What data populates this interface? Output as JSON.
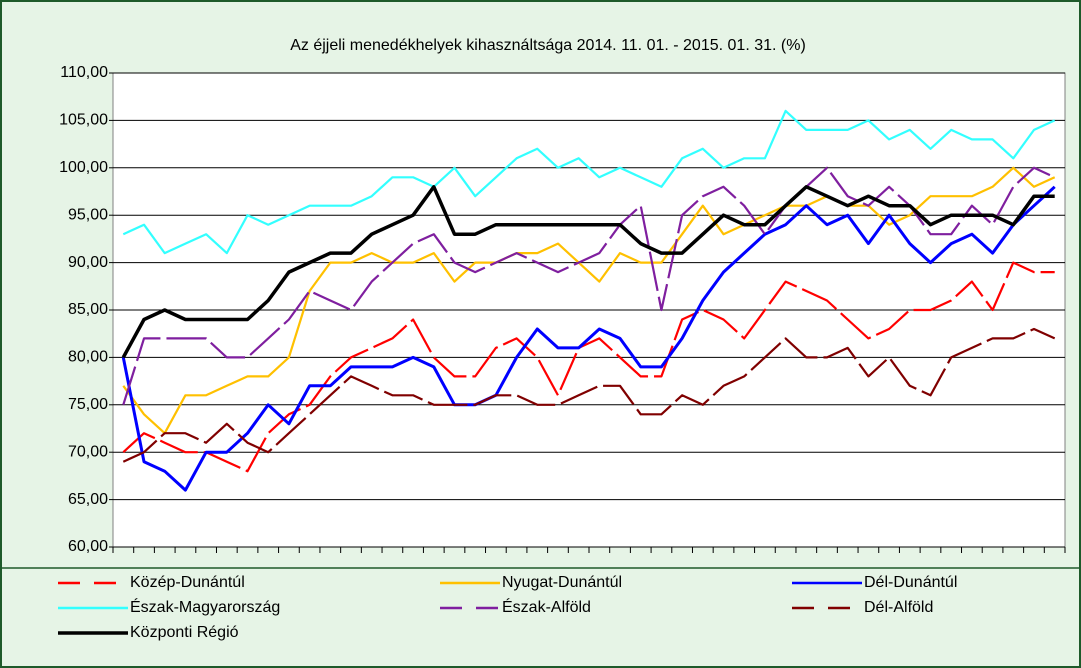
{
  "chart_data": {
    "type": "line",
    "title": "Az éjjeli menedékhelyek kihasználtsága 2014. 11. 01. - 2015. 01. 31. (%)",
    "categories": [
      null,
      null,
      null,
      null,
      null,
      null,
      null,
      null,
      null,
      null,
      null,
      null,
      null,
      null,
      null,
      null,
      null,
      null,
      null,
      null,
      null,
      null,
      null,
      null,
      null,
      null,
      null,
      null,
      null,
      null,
      null,
      null,
      null,
      null,
      null,
      null,
      null,
      null,
      null,
      null,
      null,
      null,
      null,
      null,
      null,
      null
    ],
    "ylim": [
      60,
      110
    ],
    "yticks": [
      {
        "value": 60,
        "label": "60,00"
      },
      {
        "value": 65,
        "label": "65,00"
      },
      {
        "value": 70,
        "label": "70,00"
      },
      {
        "value": 75,
        "label": "75,00"
      },
      {
        "value": 80,
        "label": "80,00"
      },
      {
        "value": 85,
        "label": "85,00"
      },
      {
        "value": 90,
        "label": "90,00"
      },
      {
        "value": 95,
        "label": "95,00"
      },
      {
        "value": 100,
        "label": "100,00"
      },
      {
        "value": 105,
        "label": "105,00"
      },
      {
        "value": 110,
        "label": "110,00"
      }
    ],
    "grid": true,
    "legend": "bottom",
    "series": [
      {
        "name": "Közép-Dunántúl",
        "color": "#ff0000",
        "dashed": true,
        "values": [
          70,
          72,
          71,
          70,
          70,
          69,
          68,
          72,
          74,
          75,
          78,
          80,
          81,
          82,
          84,
          80,
          78,
          78,
          81,
          82,
          80,
          76,
          81,
          82,
          80,
          78,
          78,
          84,
          85,
          84,
          82,
          85,
          88,
          87,
          86,
          84,
          82,
          83,
          85,
          85,
          86,
          88,
          85,
          90,
          89,
          89
        ]
      },
      {
        "name": "Nyugat-Dunántúl",
        "color": "#ffc000",
        "dashed": false,
        "values": [
          77,
          74,
          72,
          76,
          76,
          77,
          78,
          78,
          80,
          87,
          90,
          90,
          91,
          90,
          90,
          91,
          88,
          90,
          90,
          91,
          91,
          92,
          90,
          88,
          91,
          90,
          90,
          93,
          96,
          93,
          94,
          95,
          96,
          96,
          97,
          96,
          96,
          94,
          95,
          97,
          97,
          97,
          98,
          100,
          98,
          99
        ]
      },
      {
        "name": "Dél-Dunántúl",
        "color": "#0000ff",
        "dashed": false,
        "values": [
          80,
          69,
          68,
          66,
          70,
          70,
          72,
          75,
          73,
          77,
          77,
          79,
          79,
          79,
          80,
          79,
          75,
          75,
          76,
          80,
          83,
          81,
          81,
          83,
          82,
          79,
          79,
          82,
          86,
          89,
          91,
          93,
          94,
          96,
          94,
          95,
          92,
          95,
          92,
          90,
          92,
          93,
          91,
          94,
          96,
          98
        ]
      },
      {
        "name": "Észak-Magyarország",
        "color": "#33ffff",
        "dashed": false,
        "values": [
          93,
          94,
          91,
          92,
          93,
          91,
          95,
          94,
          95,
          96,
          96,
          96,
          97,
          99,
          99,
          98,
          100,
          97,
          99,
          101,
          102,
          100,
          101,
          99,
          100,
          99,
          98,
          101,
          102,
          100,
          101,
          101,
          106,
          104,
          104,
          104,
          105,
          103,
          104,
          102,
          104,
          103,
          103,
          101,
          104,
          105
        ]
      },
      {
        "name": "Észak-Alföld",
        "color": "#7f1f9f",
        "dashed": true,
        "values": [
          75,
          82,
          82,
          82,
          82,
          80,
          80,
          82,
          84,
          87,
          86,
          85,
          88,
          90,
          92,
          93,
          90,
          89,
          90,
          91,
          90,
          89,
          90,
          91,
          94,
          96,
          85,
          95,
          97,
          98,
          96,
          93,
          96,
          98,
          100,
          97,
          96,
          98,
          96,
          93,
          93,
          96,
          94,
          98,
          100,
          99
        ]
      },
      {
        "name": "Dél-Alföld",
        "color": "#800000",
        "dashed": true,
        "values": [
          69,
          70,
          72,
          72,
          71,
          73,
          71,
          70,
          72,
          74,
          76,
          78,
          77,
          76,
          76,
          75,
          75,
          75,
          76,
          76,
          75,
          75,
          76,
          77,
          77,
          74,
          74,
          76,
          75,
          77,
          78,
          80,
          82,
          80,
          80,
          81,
          78,
          80,
          77,
          76,
          80,
          81,
          82,
          82,
          83,
          82
        ]
      },
      {
        "name": "Központi Régió",
        "color": "#000000",
        "dashed": false,
        "values": [
          80,
          84,
          85,
          84,
          84,
          84,
          84,
          86,
          89,
          90,
          91,
          91,
          93,
          94,
          95,
          98,
          93,
          93,
          94,
          94,
          94,
          94,
          94,
          94,
          94,
          92,
          91,
          91,
          93,
          95,
          94,
          94,
          96,
          98,
          97,
          96,
          97,
          96,
          96,
          94,
          95,
          95,
          95,
          94,
          97,
          97
        ]
      }
    ]
  }
}
